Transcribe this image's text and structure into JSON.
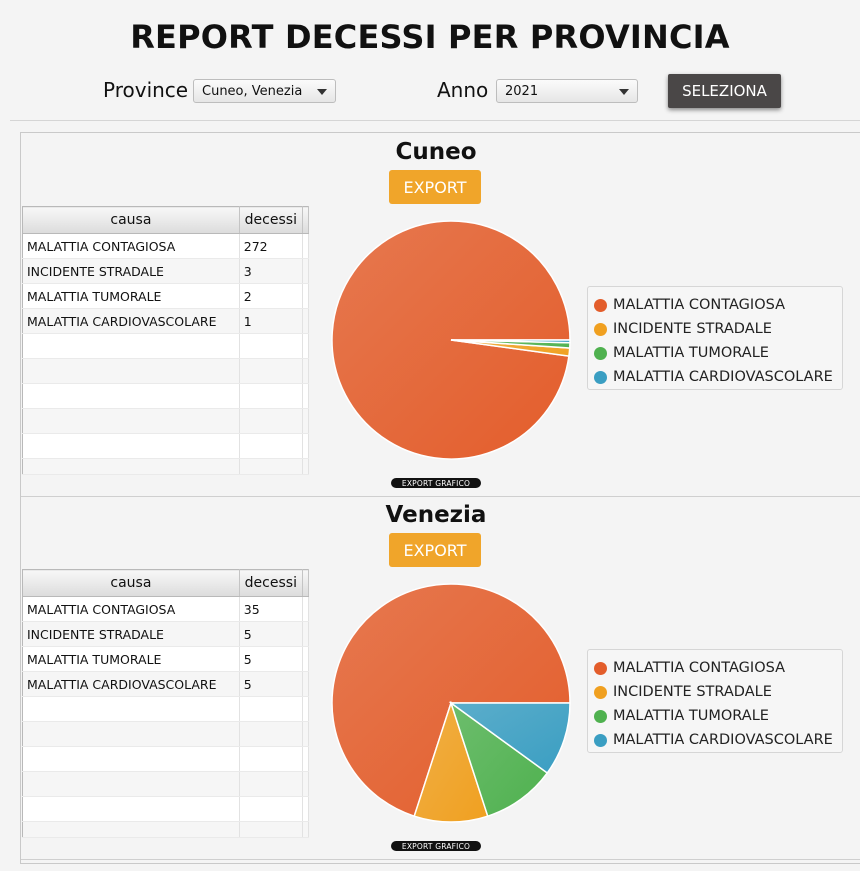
{
  "title": "REPORT DECESSI PER PROVINCIA",
  "filters": {
    "province_label": "Province",
    "province_value": "Cuneo, Venezia",
    "anno_label": "Anno",
    "anno_value": "2021",
    "select_button": "SELEZIONA"
  },
  "colors": {
    "contagiosa": "#e35d2b",
    "stradale": "#f0a020",
    "tumorale": "#4fb14f",
    "cardio": "#3a9ec2",
    "export": "#f0a52a"
  },
  "sections": [
    {
      "name": "Cuneo",
      "export_label": "EXPORT",
      "chart_export_label": "EXPORT GRAFICO",
      "columns": [
        "causa",
        "decessi"
      ],
      "rows": [
        {
          "causa": "MALATTIA CONTAGIOSA",
          "decessi": "272"
        },
        {
          "causa": "INCIDENTE STRADALE",
          "decessi": "3"
        },
        {
          "causa": "MALATTIA TUMORALE",
          "decessi": "2"
        },
        {
          "causa": "MALATTIA CARDIOVASCOLARE",
          "decessi": "1"
        }
      ],
      "legend": [
        "MALATTIA CONTAGIOSA",
        "INCIDENTE STRADALE",
        "MALATTIA TUMORALE",
        "MALATTIA CARDIOVASCOLARE"
      ]
    },
    {
      "name": "Venezia",
      "export_label": "EXPORT",
      "chart_export_label": "EXPORT GRAFICO",
      "columns": [
        "causa",
        "decessi"
      ],
      "rows": [
        {
          "causa": "MALATTIA CONTAGIOSA",
          "decessi": "35"
        },
        {
          "causa": "INCIDENTE STRADALE",
          "decessi": "5"
        },
        {
          "causa": "MALATTIA TUMORALE",
          "decessi": "5"
        },
        {
          "causa": "MALATTIA CARDIOVASCOLARE",
          "decessi": "5"
        }
      ],
      "legend": [
        "MALATTIA CONTAGIOSA",
        "INCIDENTE STRADALE",
        "MALATTIA TUMORALE",
        "MALATTIA CARDIOVASCOLARE"
      ]
    }
  ],
  "chart_data": [
    {
      "type": "pie",
      "title": "Cuneo",
      "categories": [
        "MALATTIA CONTAGIOSA",
        "INCIDENTE STRADALE",
        "MALATTIA TUMORALE",
        "MALATTIA CARDIOVASCOLARE"
      ],
      "values": [
        272,
        3,
        2,
        1
      ],
      "colors": [
        "#e35d2b",
        "#f0a020",
        "#4fb14f",
        "#3a9ec2"
      ],
      "legend": "right"
    },
    {
      "type": "pie",
      "title": "Venezia",
      "categories": [
        "MALATTIA CONTAGIOSA",
        "INCIDENTE STRADALE",
        "MALATTIA TUMORALE",
        "MALATTIA CARDIOVASCOLARE"
      ],
      "values": [
        35,
        5,
        5,
        5
      ],
      "colors": [
        "#e35d2b",
        "#f0a020",
        "#4fb14f",
        "#3a9ec2"
      ],
      "legend": "right"
    }
  ]
}
